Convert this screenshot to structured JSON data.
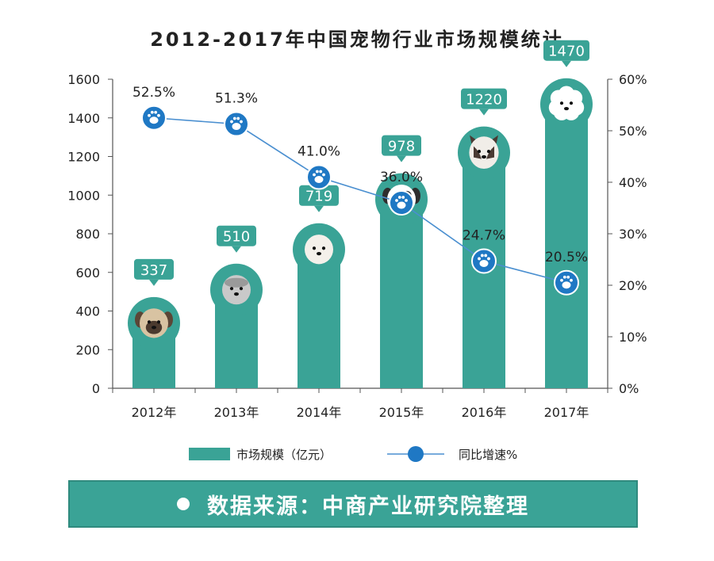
{
  "title": "2012-2017年中国宠物行业市场规模统计",
  "source": "数据来源：中商产业研究院整理",
  "colors": {
    "bar": "#3aa396",
    "line": "#4a8fd0",
    "marker": "#1f78c4",
    "text": "#222222"
  },
  "chart_data": {
    "type": "bar",
    "title": "2012-2017年中国宠物行业市场规模统计",
    "categories": [
      "2012年",
      "2013年",
      "2014年",
      "2015年",
      "2016年",
      "2017年"
    ],
    "series": [
      {
        "name": "市场规模（亿元）",
        "type": "bar",
        "axis": "left",
        "values": [
          337,
          510,
          719,
          978,
          1220,
          1470
        ]
      },
      {
        "name": "同比增速%",
        "type": "line",
        "axis": "right",
        "values": [
          52.5,
          51.3,
          41.0,
          36.0,
          24.7,
          20.5
        ],
        "labels": [
          "52.5%",
          "51.3%",
          "41.0%",
          "36.0%",
          "24.7%",
          "20.5%"
        ]
      }
    ],
    "ylim": [
      0,
      1600
    ],
    "yticks": [
      "0",
      "200",
      "400",
      "600",
      "800",
      "1000",
      "1200",
      "1400",
      "1600"
    ],
    "y2lim": [
      0,
      60
    ],
    "y2ticks": [
      "0%",
      "10%",
      "20%",
      "30%",
      "40%",
      "50%",
      "60%"
    ],
    "legend": {
      "placement": "bottom",
      "items": [
        "市场规模（亿元）",
        "同比增速%"
      ]
    },
    "bar_icons": [
      "pug-icon",
      "shaggy-dog-icon",
      "white-dog-icon",
      "spotted-dog-icon",
      "chihuahua-icon",
      "poodle-icon"
    ],
    "grid": false
  }
}
